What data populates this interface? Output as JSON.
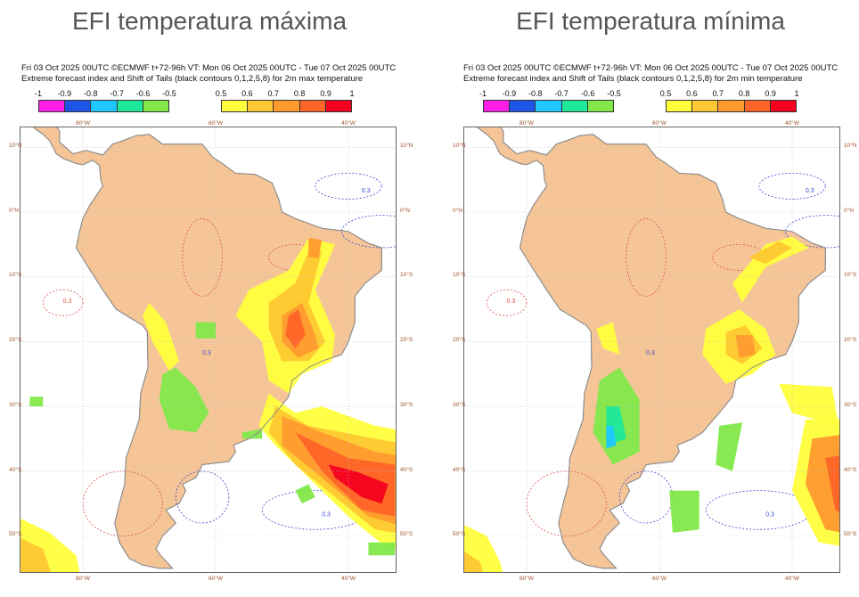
{
  "panels": [
    {
      "title": "EFI temperatura máxima",
      "header_line1": "Fri 03 Oct 2025 00UTC ©ECMWF t+72-96h  VT: Mon 06 Oct 2025 00UTC - Tue 07 Oct 2025 00UTC",
      "header_line2": "Extreme forecast index and Shift of Tails (black contours 0,1,2,5,8) for 2m max temperature",
      "variable": "max"
    },
    {
      "title": "EFI temperatura mínima",
      "header_line1": "Fri 03 Oct 2025 00UTC ©ECMWF t+72-96h  VT: Mon 06 Oct 2025 00UTC - Tue 07 Oct 2025 00UTC",
      "header_line2": "Extreme forecast index and Shift of Tails (black contours 0,1,2,5,8) for 2m min temperature",
      "variable": "min"
    }
  ],
  "legend": {
    "negative_ticks": [
      "-1",
      "-0.9",
      "-0.8",
      "-0.7",
      "-0.6",
      "-0.5"
    ],
    "negative_colors": [
      "#ff1ee6",
      "#1f55e6",
      "#1ec8ff",
      "#1ee89a",
      "#82e84a"
    ],
    "positive_ticks": [
      "0.5",
      "0.6",
      "0.7",
      "0.8",
      "0.9",
      "1"
    ],
    "positive_colors": [
      "#ffff3c",
      "#ffc832",
      "#ff9a2e",
      "#ff6428",
      "#f5001e"
    ]
  },
  "axes": {
    "lon_labels": [
      "80°W",
      "60°W",
      "40°W"
    ],
    "lat_labels": [
      "10°N",
      "0°N",
      "10°S",
      "20°S",
      "30°S",
      "40°S",
      "50°S"
    ],
    "contour_label": "0.3"
  },
  "colors": {
    "land": "#f5c597",
    "coast": "#8c8c8c",
    "grid": "#bbbbbb",
    "contour_pos": "#e0504a",
    "contour_neg": "#3a48d0"
  }
}
